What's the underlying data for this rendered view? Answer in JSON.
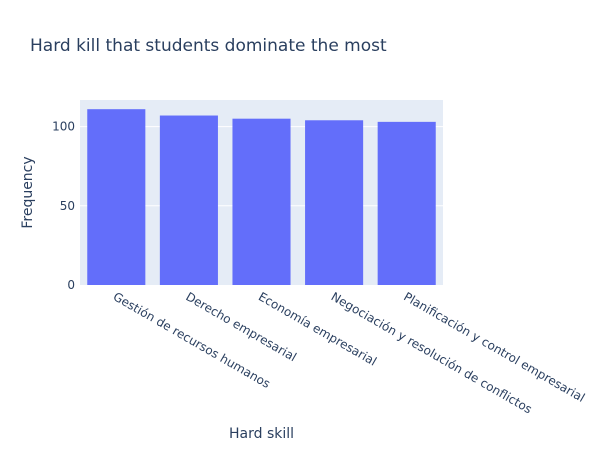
{
  "chart_data": {
    "type": "bar",
    "title": "Hard kill that students dominate the most",
    "xlabel": "Hard skill",
    "ylabel": "Frequency",
    "categories": [
      "Gestión de recursos humanos",
      "Derecho empresarial",
      "Economía empresarial",
      "Negociación y resolución de conflictos",
      "Planificación y control empresarial"
    ],
    "values": [
      111,
      107,
      105,
      104,
      103
    ],
    "ylim": [
      0,
      116.8
    ],
    "yticks": [
      0,
      50,
      100
    ],
    "grid": true,
    "colors": {
      "bar": "#636efa",
      "plot_background": "#e5ecf6",
      "gridline": "#ffffff",
      "text": "#2a3f5f"
    }
  }
}
